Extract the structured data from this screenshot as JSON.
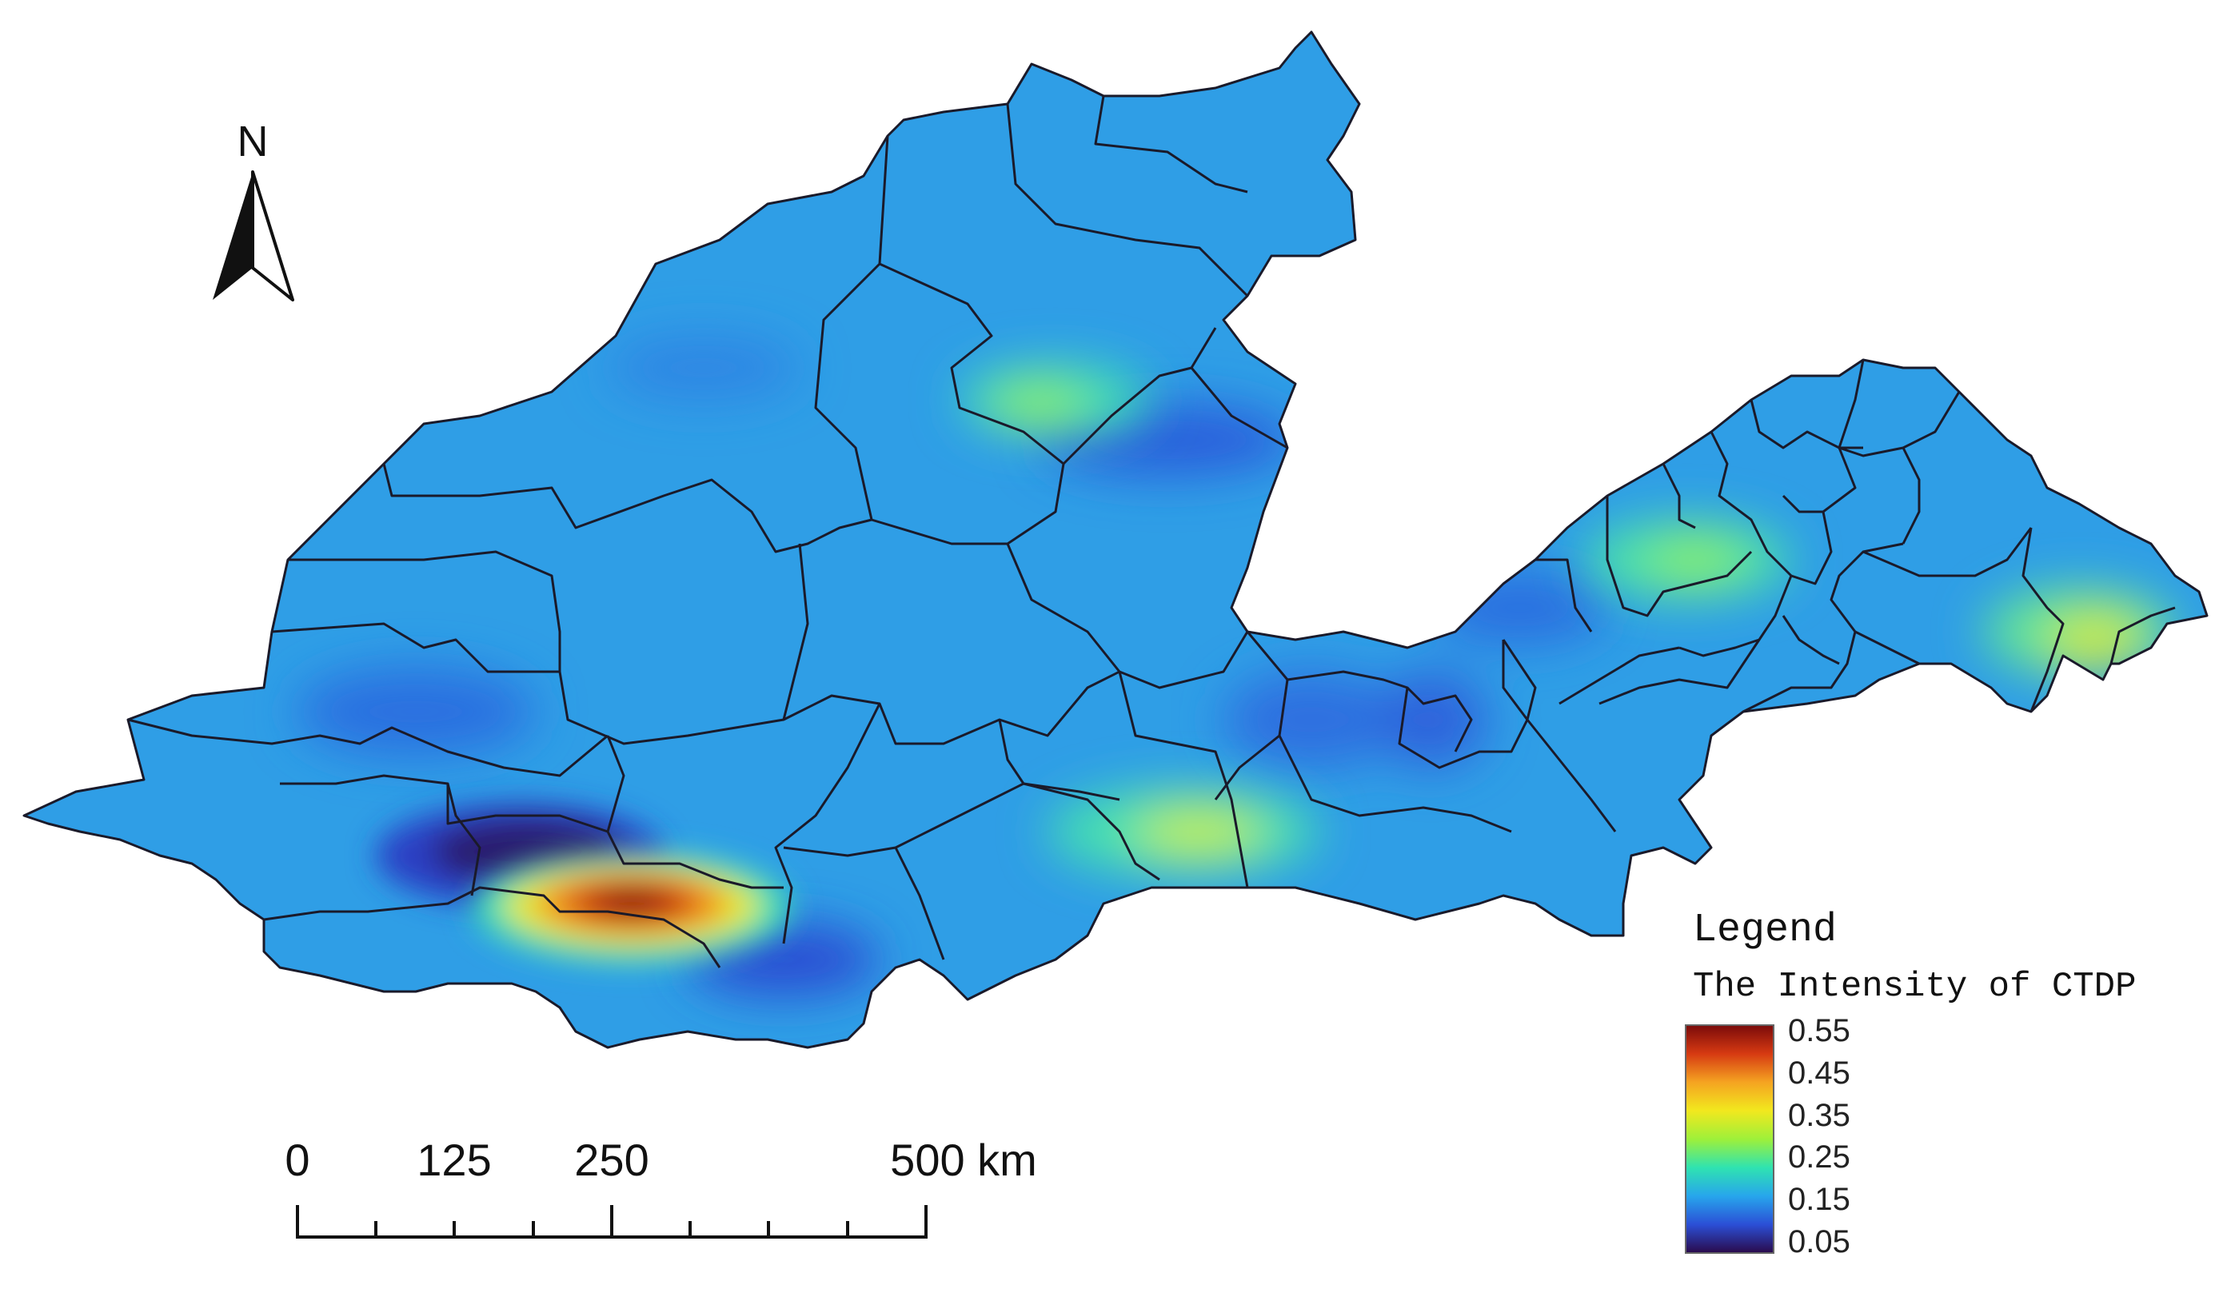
{
  "north_arrow": {
    "label": "N",
    "icon": "north-arrow-icon"
  },
  "legend": {
    "title": "Legend",
    "subtitle": "The Intensity of CTDP",
    "ticks": [
      "0.55",
      "0.45",
      "0.35",
      "0.25",
      "0.15",
      "0.05"
    ],
    "range": [
      0.05,
      0.55
    ],
    "colormap": [
      "#2a0a4a",
      "#2b4fd6",
      "#27a6ec",
      "#2fe3b0",
      "#9ef03a",
      "#f2e81e",
      "#f5a321",
      "#d63a12",
      "#7a0a0a"
    ]
  },
  "scale_bar": {
    "labels": [
      "0",
      "125",
      "250",
      "500 km"
    ],
    "distances_km": [
      0,
      125,
      250,
      500
    ]
  },
  "colors": {
    "background_field": "#2f9ee6",
    "boundary": "#1a1a2a"
  }
}
